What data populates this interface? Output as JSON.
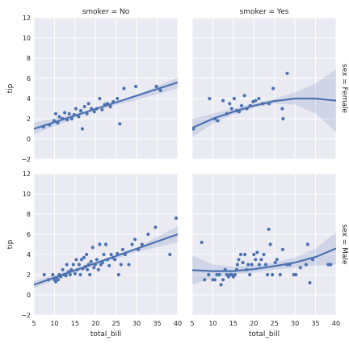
{
  "colors": {
    "panel_bg": "#eaeaf2",
    "grid": "#ffffff",
    "series": "#4c72b0"
  },
  "chart_data": {
    "type": "scatter",
    "kind": "faceted regression scatter with fitted line and confidence band",
    "grid": true,
    "shared_axes": {
      "x": true,
      "y": true
    },
    "xlim": [
      5,
      40
    ],
    "ylim": [
      -2,
      12
    ],
    "x_ticks": [
      "5",
      "10",
      "15",
      "20",
      "25",
      "30",
      "35",
      "40"
    ],
    "y_ticks": [
      "−2",
      "0",
      "2",
      "4",
      "6",
      "8",
      "10",
      "12"
    ],
    "xlabel": "total_bill",
    "ylabel": "tip",
    "col_titles": [
      "smoker = No",
      "smoker = Yes"
    ],
    "row_titles": [
      "sex = Female",
      "sex = Male"
    ],
    "panels": [
      {
        "row": 0,
        "col": 0,
        "fit": "linear",
        "line": [
          [
            5,
            1.0
          ],
          [
            40,
            5.6
          ]
        ],
        "band": {
          "x": [
            5,
            15,
            20,
            30,
            40
          ],
          "upper": [
            1.6,
            2.5,
            3.05,
            4.35,
            6.1
          ],
          "lower": [
            0.45,
            2.05,
            2.85,
            3.85,
            5.0
          ]
        },
        "points": [
          [
            7.3,
            1.2
          ],
          [
            8.8,
            1.4
          ],
          [
            9.9,
            1.8
          ],
          [
            10.3,
            2.5
          ],
          [
            10.8,
            1.6
          ],
          [
            11.2,
            2.2
          ],
          [
            11.9,
            2.0
          ],
          [
            12.5,
            2.6
          ],
          [
            13.1,
            1.9
          ],
          [
            13.6,
            2.5
          ],
          [
            14.2,
            2.0
          ],
          [
            14.8,
            2.4
          ],
          [
            15.2,
            3.0
          ],
          [
            15.9,
            2.2
          ],
          [
            16.4,
            2.8
          ],
          [
            16.8,
            1.0
          ],
          [
            17.3,
            3.2
          ],
          [
            17.9,
            2.5
          ],
          [
            18.3,
            3.5
          ],
          [
            19.0,
            3.0
          ],
          [
            19.7,
            2.7
          ],
          [
            20.3,
            3.0
          ],
          [
            21.0,
            4.0
          ],
          [
            21.6,
            2.9
          ],
          [
            22.2,
            3.4
          ],
          [
            22.9,
            3.5
          ],
          [
            23.6,
            3.2
          ],
          [
            24.3,
            3.7
          ],
          [
            25.3,
            4.0
          ],
          [
            25.9,
            1.5
          ],
          [
            26.9,
            5.0
          ],
          [
            29.8,
            5.2
          ],
          [
            34.8,
            5.2
          ],
          [
            35.8,
            4.8
          ]
        ]
      },
      {
        "row": 0,
        "col": 1,
        "fit": "quadratic",
        "line": [
          [
            5,
            1.1
          ],
          [
            10,
            2.0
          ],
          [
            15,
            2.7
          ],
          [
            20,
            3.3
          ],
          [
            25,
            3.75
          ],
          [
            30,
            4.0
          ],
          [
            35,
            4.0
          ],
          [
            40,
            3.8
          ]
        ],
        "band": {
          "x": [
            5,
            10,
            15,
            20,
            25,
            30,
            35,
            40
          ],
          "upper": [
            2.0,
            2.5,
            3.0,
            3.5,
            4.0,
            4.6,
            5.5,
            6.9
          ],
          "lower": [
            0.2,
            1.5,
            2.4,
            3.1,
            3.5,
            3.4,
            2.5,
            0.7
          ]
        },
        "points": [
          [
            5.3,
            1.0
          ],
          [
            9.2,
            4.0
          ],
          [
            10.5,
            2.0
          ],
          [
            11.2,
            1.8
          ],
          [
            12.5,
            3.8
          ],
          [
            13.4,
            2.5
          ],
          [
            14.1,
            3.5
          ],
          [
            14.6,
            3.0
          ],
          [
            15.2,
            4.0
          ],
          [
            15.8,
            2.8
          ],
          [
            16.4,
            2.7
          ],
          [
            17.0,
            3.3
          ],
          [
            17.7,
            4.3
          ],
          [
            18.3,
            3.0
          ],
          [
            19.1,
            3.3
          ],
          [
            19.8,
            3.7
          ],
          [
            20.4,
            3.8
          ],
          [
            21.2,
            4.0
          ],
          [
            22.1,
            3.5
          ],
          [
            23.7,
            3.5
          ],
          [
            24.7,
            5.0
          ],
          [
            26.9,
            3.0
          ],
          [
            27.1,
            2.0
          ],
          [
            28.1,
            6.5
          ]
        ]
      },
      {
        "row": 1,
        "col": 0,
        "fit": "linear",
        "line": [
          [
            5,
            1.0
          ],
          [
            40,
            6.0
          ]
        ],
        "band": {
          "x": [
            5,
            15,
            20,
            30,
            40
          ],
          "upper": [
            1.35,
            2.6,
            3.2,
            4.65,
            6.8
          ],
          "lower": [
            0.65,
            2.25,
            2.9,
            4.25,
            5.2
          ]
        },
        "points": [
          [
            7.5,
            2.0
          ],
          [
            8.5,
            1.5
          ],
          [
            9.6,
            2.0
          ],
          [
            10.0,
            1.5
          ],
          [
            10.3,
            1.3
          ],
          [
            10.5,
            1.7
          ],
          [
            10.9,
            1.5
          ],
          [
            11.2,
            2.0
          ],
          [
            11.5,
            1.8
          ],
          [
            12.0,
            2.5
          ],
          [
            12.4,
            2.0
          ],
          [
            12.8,
            1.9
          ],
          [
            13.0,
            3.0
          ],
          [
            13.4,
            2.3
          ],
          [
            13.8,
            2.0
          ],
          [
            14.1,
            2.5
          ],
          [
            14.6,
            3.0
          ],
          [
            15.0,
            2.1
          ],
          [
            15.3,
            3.5
          ],
          [
            15.6,
            2.5
          ],
          [
            16.0,
            3.0
          ],
          [
            16.3,
            2.0
          ],
          [
            16.6,
            3.5
          ],
          [
            16.9,
            2.6
          ],
          [
            17.2,
            3.7
          ],
          [
            17.5,
            2.8
          ],
          [
            17.8,
            4.0
          ],
          [
            18.0,
            2.5
          ],
          [
            18.3,
            3.0
          ],
          [
            18.6,
            2.0
          ],
          [
            18.9,
            3.3
          ],
          [
            19.3,
            4.7
          ],
          [
            19.6,
            2.7
          ],
          [
            19.9,
            3.0
          ],
          [
            20.3,
            3.5
          ],
          [
            20.7,
            2.5
          ],
          [
            21.0,
            5.0
          ],
          [
            21.3,
            3.0
          ],
          [
            21.7,
            3.2
          ],
          [
            22.0,
            4.0
          ],
          [
            22.5,
            5.0
          ],
          [
            22.9,
            3.5
          ],
          [
            23.3,
            2.9
          ],
          [
            23.8,
            4.0
          ],
          [
            24.2,
            3.7
          ],
          [
            24.7,
            3.5
          ],
          [
            25.3,
            4.1
          ],
          [
            25.6,
            2.0
          ],
          [
            26.2,
            3.0
          ],
          [
            26.6,
            4.5
          ],
          [
            27.2,
            4.0
          ],
          [
            28.1,
            3.0
          ],
          [
            28.9,
            5.0
          ],
          [
            29.6,
            5.5
          ],
          [
            30.4,
            4.5
          ],
          [
            31.3,
            5.0
          ],
          [
            32.8,
            6.0
          ],
          [
            34.6,
            6.7
          ],
          [
            38.1,
            4.0
          ],
          [
            39.6,
            7.6
          ]
        ]
      },
      {
        "row": 1,
        "col": 1,
        "fit": "quadratic",
        "line": [
          [
            5,
            2.45
          ],
          [
            10,
            2.35
          ],
          [
            15,
            2.35
          ],
          [
            20,
            2.55
          ],
          [
            25,
            2.85
          ],
          [
            30,
            3.2
          ],
          [
            35,
            3.75
          ],
          [
            40,
            4.6
          ]
        ],
        "band": {
          "x": [
            5,
            10,
            15,
            20,
            25,
            30,
            35,
            40
          ],
          "upper": [
            3.9,
            3.0,
            2.8,
            2.9,
            3.2,
            3.7,
            4.6,
            6.2
          ],
          "lower": [
            1.0,
            1.7,
            2.0,
            2.2,
            2.5,
            2.7,
            2.9,
            3.0
          ]
        },
        "points": [
          [
            7.3,
            5.2
          ],
          [
            8.0,
            1.5
          ],
          [
            9.0,
            2.0
          ],
          [
            10.0,
            1.5
          ],
          [
            10.5,
            1.5
          ],
          [
            11.0,
            2.0
          ],
          [
            11.6,
            2.0
          ],
          [
            12.0,
            1.0
          ],
          [
            12.5,
            1.5
          ],
          [
            13.0,
            2.5
          ],
          [
            13.4,
            2.0
          ],
          [
            13.8,
            1.8
          ],
          [
            14.2,
            2.0
          ],
          [
            14.6,
            2.0
          ],
          [
            15.0,
            1.8
          ],
          [
            15.4,
            2.0
          ],
          [
            15.8,
            2.5
          ],
          [
            16.0,
            3.0
          ],
          [
            16.3,
            3.5
          ],
          [
            16.8,
            4.0
          ],
          [
            17.3,
            3.2
          ],
          [
            17.8,
            4.0
          ],
          [
            18.2,
            2.5
          ],
          [
            18.6,
            3.0
          ],
          [
            19.0,
            2.0
          ],
          [
            19.5,
            3.0
          ],
          [
            20.0,
            4.0
          ],
          [
            20.4,
            3.5
          ],
          [
            20.8,
            4.2
          ],
          [
            21.3,
            3.0
          ],
          [
            21.8,
            3.5
          ],
          [
            22.4,
            4.0
          ],
          [
            22.9,
            3.0
          ],
          [
            23.3,
            2.0
          ],
          [
            23.6,
            6.5
          ],
          [
            24.0,
            5.0
          ],
          [
            24.5,
            2.0
          ],
          [
            25.2,
            3.2
          ],
          [
            25.6,
            3.5
          ],
          [
            26.4,
            2.0
          ],
          [
            27.0,
            4.5
          ],
          [
            28.0,
            3.0
          ],
          [
            28.7,
            3.0
          ],
          [
            29.7,
            2.0
          ],
          [
            30.2,
            2.0
          ],
          [
            31.3,
            2.7
          ],
          [
            32.7,
            3.0
          ],
          [
            33.1,
            5.0
          ],
          [
            33.6,
            1.2
          ],
          [
            34.3,
            3.5
          ],
          [
            38.1,
            3.0
          ],
          [
            38.7,
            3.0
          ]
        ]
      }
    ]
  }
}
